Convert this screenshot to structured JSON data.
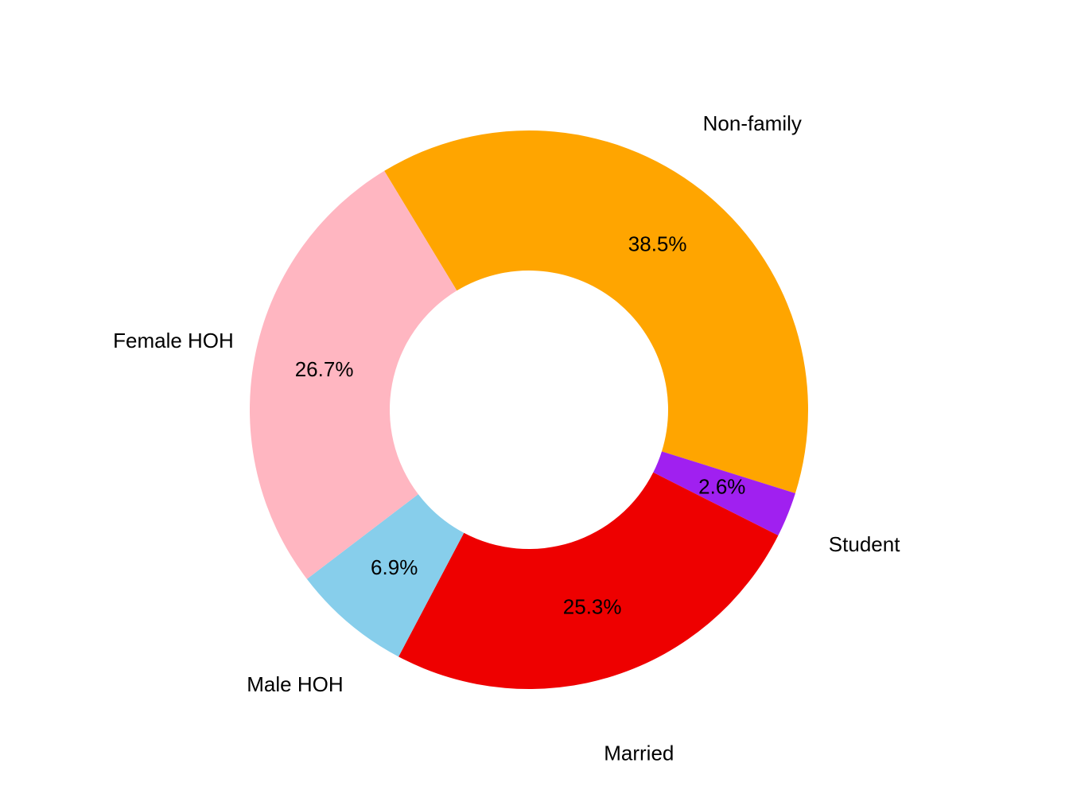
{
  "chart_data": {
    "type": "donut",
    "categories": [
      "Non-family",
      "Student",
      "Married",
      "Male HOH",
      "Female HOH"
    ],
    "values": [
      38.5,
      2.6,
      25.3,
      6.9,
      26.7
    ],
    "value_labels": [
      "38.5%",
      "2.6%",
      "25.3%",
      "6.9%",
      "26.7%"
    ],
    "colors": [
      "#FFA500",
      "#A020F0",
      "#EE0000",
      "#87CEEB",
      "#FFB6C1"
    ]
  }
}
